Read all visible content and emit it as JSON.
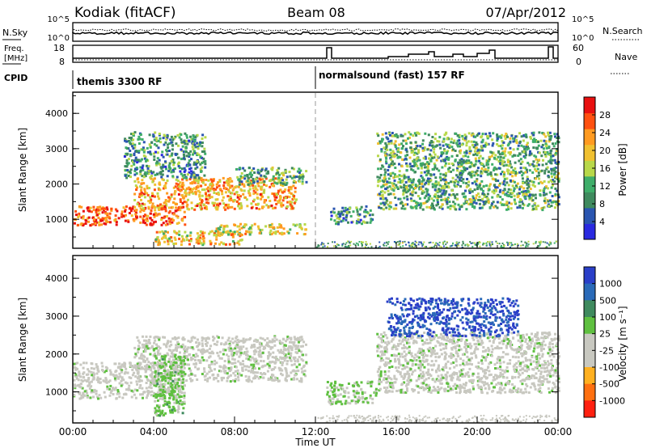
{
  "header": {
    "station": "Kodiak (fitACF)",
    "beam": "Beam 08",
    "date": "07/Apr/2012"
  },
  "small_panels": {
    "nsky_label": "N.Sky",
    "nsky_ticks": [
      "10^5",
      "10^0"
    ],
    "nsearch_label": "N.Search",
    "nsearch_ticks": [
      "10^5",
      "10^0"
    ],
    "freq_label_line1": "Freq.",
    "freq_label_line2": "[MHz]",
    "freq_ticks": [
      "18",
      "8"
    ],
    "nave_label": "Nave",
    "nave_ticks": [
      "60",
      "0"
    ],
    "cpid_label": "CPID",
    "cpid_segments": [
      "themis 3300 RF",
      "normalsound (fast) 157 RF"
    ],
    "cpid_switch_hour": 12
  },
  "main_panels": {
    "ylabel": "Slant Range [km]",
    "yticks": [
      "4000",
      "3000",
      "2000",
      "1000"
    ],
    "xlabel": "Time UT",
    "xticks": [
      "00:00",
      "04:00",
      "08:00",
      "12:00",
      "16:00",
      "20:00",
      "00:00"
    ]
  },
  "power_colorbar": {
    "label": "Power [dB]",
    "ticks": [
      "28",
      "24",
      "20",
      "16",
      "12",
      "8",
      "4"
    ],
    "colors": [
      "#2a2ae0",
      "#2a55b0",
      "#3f8a5e",
      "#3fae6a",
      "#b8d84a",
      "#f0c030",
      "#ff9a20",
      "#ff5010",
      "#e81010"
    ]
  },
  "velocity_colorbar": {
    "label": "Velocity [m s⁻¹]",
    "ticks": [
      "1000",
      "500",
      "100",
      "25",
      "-25",
      "-100",
      "-500",
      "-1000"
    ],
    "colors": [
      "#2a3fc8",
      "#2a6ab8",
      "#3f8a5e",
      "#5fc040",
      "#c8c8c0",
      "#c8c8c0",
      "#ffb020",
      "#ff7010",
      "#ff2010"
    ]
  },
  "chart_data": [
    {
      "type": "heatmap",
      "title": "Power",
      "ylabel": "Slant Range [km]",
      "xlabel": "Time UT",
      "xlim": [
        0,
        24
      ],
      "ylim": [
        180,
        4600
      ],
      "zlabel": "Power [dB]",
      "zlim": [
        0,
        32
      ],
      "regions": [
        {
          "t0": 0.0,
          "t1": 5.5,
          "r0": 850,
          "r1": 1400,
          "power": 26
        },
        {
          "t0": 3.0,
          "t1": 11.0,
          "r0": 1300,
          "r1": 2200,
          "power": 22
        },
        {
          "t0": 8.0,
          "t1": 11.5,
          "r0": 2000,
          "r1": 2500,
          "power": 12
        },
        {
          "t0": 2.5,
          "t1": 6.5,
          "r0": 2200,
          "r1": 3500,
          "power": 10
        },
        {
          "t0": 4.0,
          "t1": 8.5,
          "r0": 300,
          "r1": 700,
          "power": 20
        },
        {
          "t0": 7.0,
          "t1": 11.5,
          "r0": 600,
          "r1": 900,
          "power": 18
        },
        {
          "t0": 12.7,
          "t1": 14.8,
          "r0": 900,
          "r1": 1400,
          "power": 10
        },
        {
          "t0": 15.0,
          "t1": 24.0,
          "r0": 1300,
          "r1": 3500,
          "power": 12
        }
      ]
    },
    {
      "type": "heatmap",
      "title": "Velocity",
      "ylabel": "Slant Range [km]",
      "xlabel": "Time UT",
      "xlim": [
        0,
        24
      ],
      "ylim": [
        180,
        4600
      ],
      "zlabel": "Velocity [m s⁻¹]",
      "zlim": [
        -1000,
        1000
      ],
      "regions": [
        {
          "t0": 0.0,
          "t1": 5.5,
          "r0": 850,
          "r1": 1800,
          "velocity": 0
        },
        {
          "t0": 3.0,
          "t1": 11.5,
          "r0": 1300,
          "r1": 2500,
          "velocity": 0
        },
        {
          "t0": 4.0,
          "t1": 5.5,
          "r0": 400,
          "r1": 2000,
          "velocity": 200
        },
        {
          "t0": 12.5,
          "t1": 15.0,
          "r0": 700,
          "r1": 1300,
          "velocity": 100
        },
        {
          "t0": 15.0,
          "t1": 24.0,
          "r0": 1000,
          "r1": 2600,
          "velocity": 0
        },
        {
          "t0": 15.5,
          "t1": 22.0,
          "r0": 2500,
          "r1": 3500,
          "velocity": 800
        }
      ]
    }
  ]
}
